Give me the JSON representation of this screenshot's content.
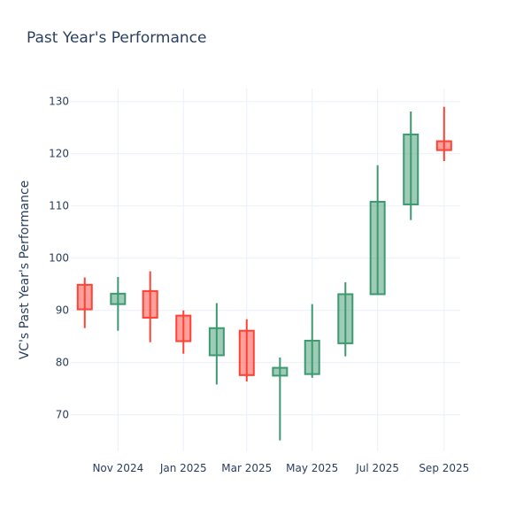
{
  "chart_data": {
    "type": "candlestick",
    "title": "Past Year's Performance",
    "ylabel": "VC's Past Year's Performance",
    "xlabel": "",
    "ylim": [
      63,
      132.5
    ],
    "xlim": [
      "2024-09-18",
      "2025-09-16"
    ],
    "grid": true,
    "yticks": [
      70,
      80,
      90,
      100,
      110,
      120,
      130
    ],
    "xticks": [
      {
        "date": "2024-11-01",
        "label": "Nov 2024"
      },
      {
        "date": "2025-01-01",
        "label": "Jan 2025"
      },
      {
        "date": "2025-03-01",
        "label": "Mar 2025"
      },
      {
        "date": "2025-05-01",
        "label": "May 2025"
      },
      {
        "date": "2025-07-01",
        "label": "Jul 2025"
      },
      {
        "date": "2025-09-01",
        "label": "Sep 2025"
      }
    ],
    "colors": {
      "increasing": "#3d9970",
      "decreasing": "#ff4136"
    },
    "candles": [
      {
        "date": "2024-10-01",
        "open": 94.9,
        "high": 96.3,
        "low": 86.6,
        "close": 90.2
      },
      {
        "date": "2024-11-01",
        "open": 91.2,
        "high": 96.4,
        "low": 86.1,
        "close": 93.2
      },
      {
        "date": "2024-12-01",
        "open": 93.7,
        "high": 97.5,
        "low": 83.9,
        "close": 88.6
      },
      {
        "date": "2025-01-01",
        "open": 89.0,
        "high": 90.0,
        "low": 81.7,
        "close": 84.1
      },
      {
        "date": "2025-02-01",
        "open": 81.4,
        "high": 91.4,
        "low": 75.8,
        "close": 86.6
      },
      {
        "date": "2025-03-01",
        "open": 86.1,
        "high": 88.3,
        "low": 76.4,
        "close": 77.6
      },
      {
        "date": "2025-04-01",
        "open": 77.5,
        "high": 81.0,
        "low": 65.1,
        "close": 79.0
      },
      {
        "date": "2025-05-01",
        "open": 77.8,
        "high": 91.2,
        "low": 77.1,
        "close": 84.2
      },
      {
        "date": "2025-06-01",
        "open": 83.7,
        "high": 95.4,
        "low": 81.2,
        "close": 93.1
      },
      {
        "date": "2025-07-01",
        "open": 93.1,
        "high": 117.8,
        "low": 93.0,
        "close": 110.8
      },
      {
        "date": "2025-08-01",
        "open": 110.3,
        "high": 128.1,
        "low": 107.3,
        "close": 123.7
      },
      {
        "date": "2025-09-01",
        "open": 122.4,
        "high": 129.0,
        "low": 118.6,
        "close": 120.7
      }
    ]
  }
}
